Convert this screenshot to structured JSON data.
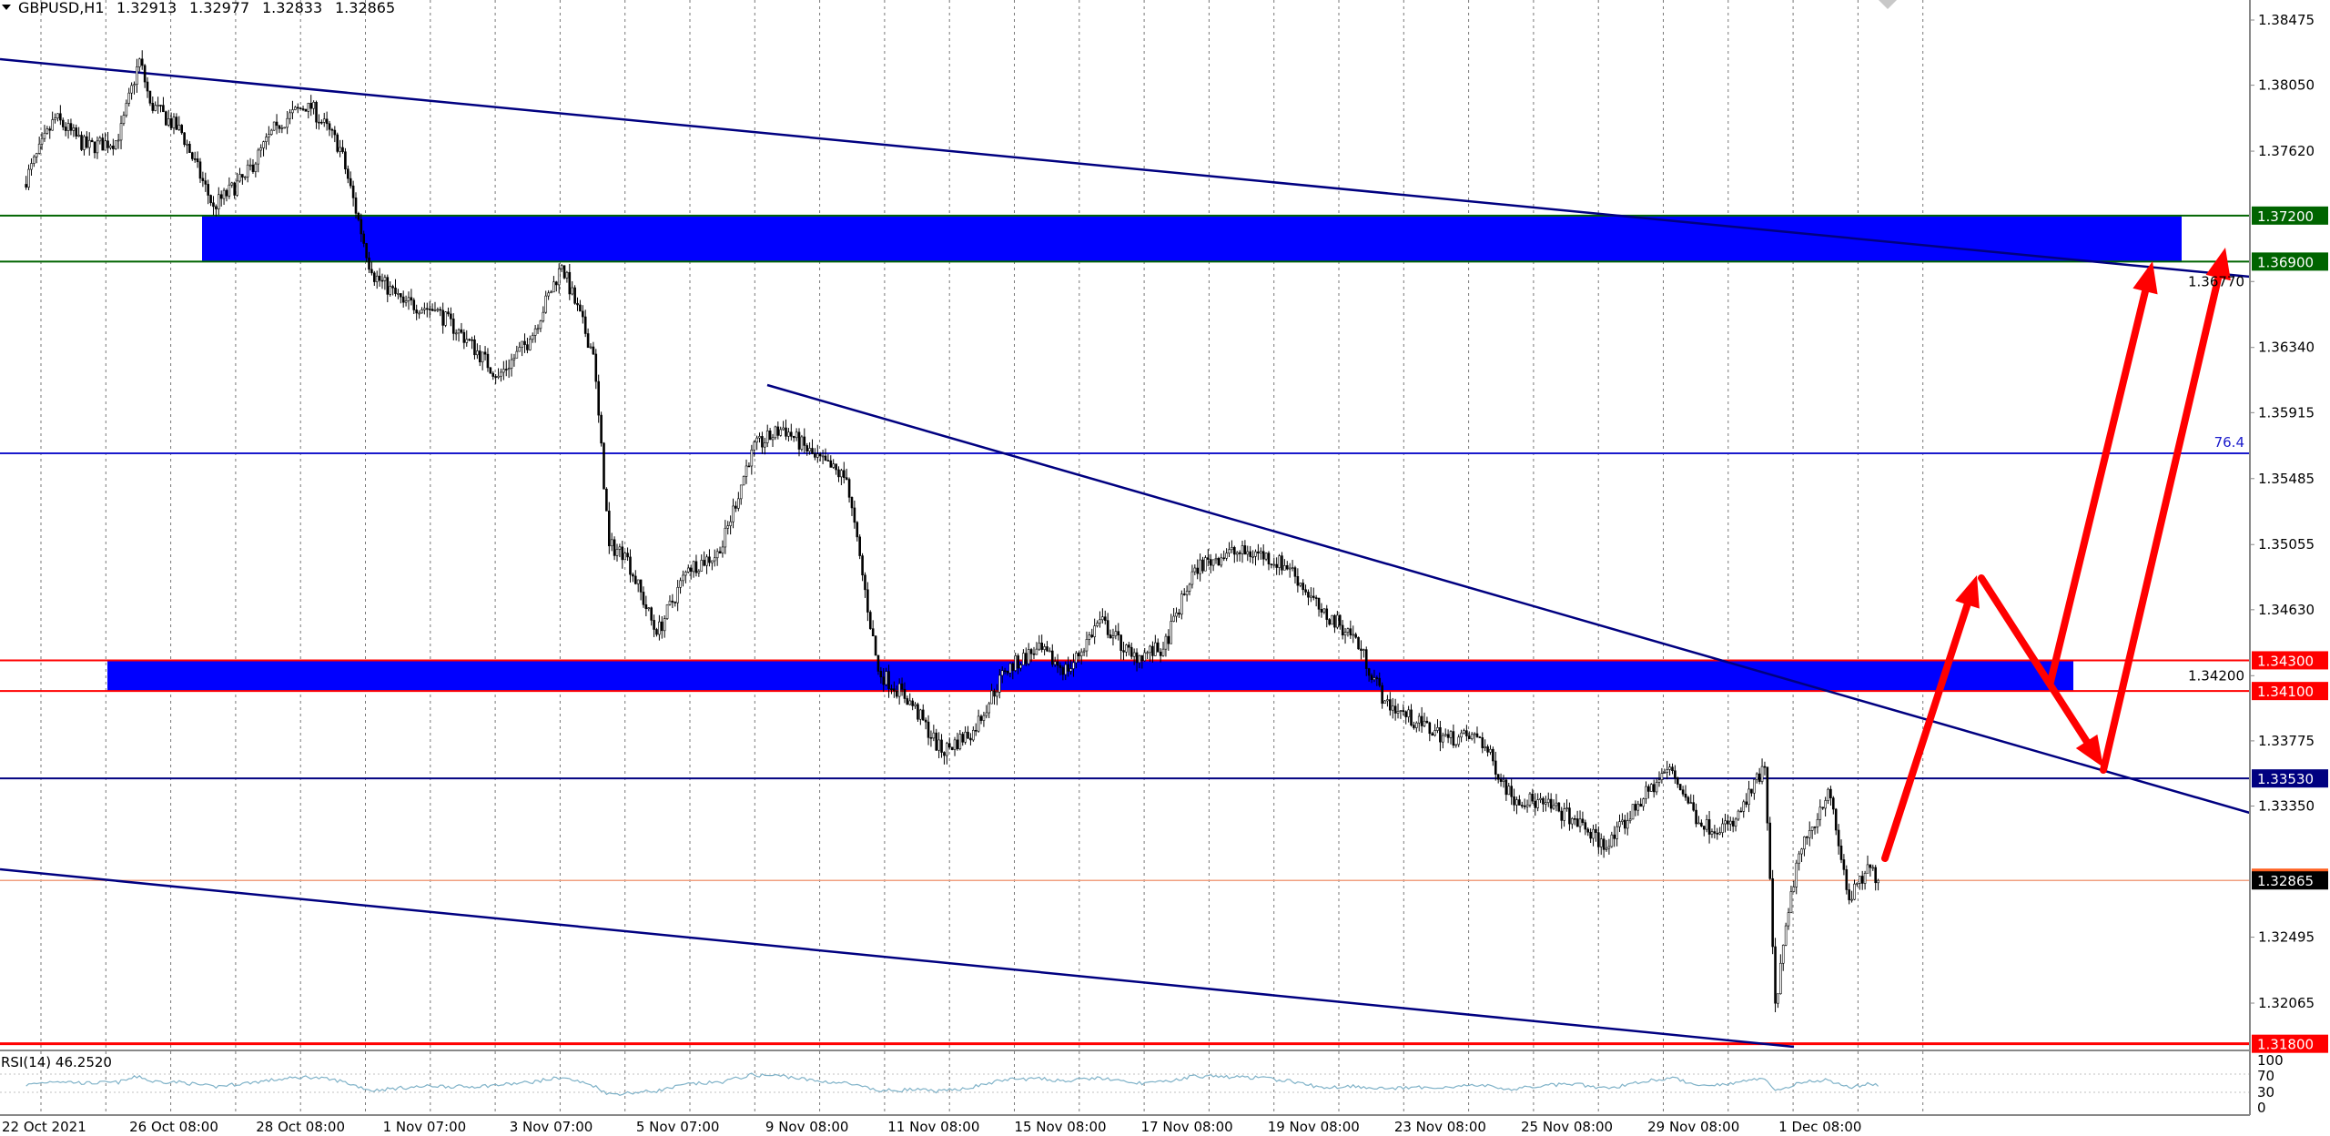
{
  "header": {
    "symbol": "GBPUSD,H1",
    "open": "1.32913",
    "high": "1.32977",
    "low": "1.32833",
    "close": "1.32865"
  },
  "colors": {
    "zone": "#0000ff",
    "trendline": "#000080",
    "support_resistance_red": "#ff0000",
    "green_level": "#006400",
    "arrow": "#ff0000",
    "rsi_line": "#7fb2c8",
    "candles": "#000000"
  },
  "chart_data": {
    "type": "candlestick",
    "title": "GBPUSD,H1",
    "timeframe": "H1",
    "ylim": [
      1.318,
      1.3855
    ],
    "grid": "vertical dashed",
    "price_ticks": [
      "1.38475",
      "1.38050",
      "1.37620",
      "1.36770",
      "1.36340",
      "1.35915",
      "1.35485",
      "1.35055",
      "1.34630",
      "1.34200",
      "1.33775",
      "1.33350",
      "1.32495",
      "1.32065"
    ],
    "time_ticks": [
      {
        "label": "22 Oct 2021",
        "t": "22 Oct 00:00"
      },
      {
        "label": "26 Oct 08:00",
        "t": "26 Oct 08:00"
      },
      {
        "label": "28 Oct 08:00",
        "t": "28 Oct 08:00"
      },
      {
        "label": "1 Nov 07:00",
        "t": "1 Nov 07:00"
      },
      {
        "label": "3 Nov 07:00",
        "t": "3 Nov 07:00"
      },
      {
        "label": "5 Nov 07:00",
        "t": "5 Nov 07:00"
      },
      {
        "label": "9 Nov 08:00",
        "t": "9 Nov 08:00"
      },
      {
        "label": "11 Nov 08:00",
        "t": "11 Nov 08:00"
      },
      {
        "label": "15 Nov 08:00",
        "t": "15 Nov 08:00"
      },
      {
        "label": "17 Nov 08:00",
        "t": "17 Nov 08:00"
      },
      {
        "label": "19 Nov 08:00",
        "t": "19 Nov 08:00"
      },
      {
        "label": "23 Nov 08:00",
        "t": "23 Nov 08:00"
      },
      {
        "label": "25 Nov 08:00",
        "t": "25 Nov 08:00"
      },
      {
        "label": "29 Nov 08:00",
        "t": "29 Nov 08:00"
      },
      {
        "label": "1 Dec 08:00",
        "t": "1 Dec 08:00"
      }
    ],
    "price_path": [
      {
        "t": "22 Oct 00:00",
        "p": 1.37404,
        "rsi": 45
      },
      {
        "t": "22 Oct 12:00",
        "p": 1.37836,
        "rsi": 55
      },
      {
        "t": "25 Oct 00:00",
        "p": 1.37644,
        "rsi": 50
      },
      {
        "t": "25 Oct 12:00",
        "p": 1.37692,
        "rsi": 52
      },
      {
        "t": "25 Oct 20:00",
        "p": 1.38221,
        "rsi": 66
      },
      {
        "t": "26 Oct 00:00",
        "p": 1.37933,
        "rsi": 54
      },
      {
        "t": "26 Oct 12:00",
        "p": 1.3774,
        "rsi": 52
      },
      {
        "t": "27 Oct 00:00",
        "p": 1.37259,
        "rsi": 42
      },
      {
        "t": "27 Oct 12:00",
        "p": 1.37452,
        "rsi": 50
      },
      {
        "t": "28 Oct 00:00",
        "p": 1.37788,
        "rsi": 58
      },
      {
        "t": "28 Oct 12:00",
        "p": 1.37933,
        "rsi": 64
      },
      {
        "t": "29 Oct 00:00",
        "p": 1.37644,
        "rsi": 55
      },
      {
        "t": "29 Oct 12:00",
        "p": 1.36826,
        "rsi": 34
      },
      {
        "t": "1 Nov 00:00",
        "p": 1.36634,
        "rsi": 40
      },
      {
        "t": "1 Nov 12:00",
        "p": 1.36586,
        "rsi": 44
      },
      {
        "t": "2 Nov 00:00",
        "p": 1.36393,
        "rsi": 42
      },
      {
        "t": "2 Nov 12:00",
        "p": 1.36153,
        "rsi": 46
      },
      {
        "t": "3 Nov 00:00",
        "p": 1.36393,
        "rsi": 52
      },
      {
        "t": "3 Nov 12:00",
        "p": 1.36874,
        "rsi": 63
      },
      {
        "t": "4 Nov 00:00",
        "p": 1.36297,
        "rsi": 45
      },
      {
        "t": "4 Nov 06:00",
        "p": 1.35046,
        "rsi": 26
      },
      {
        "t": "4 Nov 12:00",
        "p": 1.34999,
        "rsi": 28
      },
      {
        "t": "5 Nov 00:00",
        "p": 1.34469,
        "rsi": 33
      },
      {
        "t": "5 Nov 12:00",
        "p": 1.34902,
        "rsi": 48
      },
      {
        "t": "8 Nov 00:00",
        "p": 1.34999,
        "rsi": 52
      },
      {
        "t": "8 Nov 12:00",
        "p": 1.35672,
        "rsi": 68
      },
      {
        "t": "9 Nov 00:00",
        "p": 1.35816,
        "rsi": 66
      },
      {
        "t": "9 Nov 12:00",
        "p": 1.35624,
        "rsi": 55
      },
      {
        "t": "10 Nov 00:00",
        "p": 1.3548,
        "rsi": 50
      },
      {
        "t": "10 Nov 12:00",
        "p": 1.34229,
        "rsi": 33
      },
      {
        "t": "11 Nov 00:00",
        "p": 1.34036,
        "rsi": 36
      },
      {
        "t": "11 Nov 12:00",
        "p": 1.337,
        "rsi": 32
      },
      {
        "t": "12 Nov 00:00",
        "p": 1.33844,
        "rsi": 42
      },
      {
        "t": "12 Nov 12:00",
        "p": 1.34229,
        "rsi": 58
      },
      {
        "t": "15 Nov 00:00",
        "p": 1.34373,
        "rsi": 60
      },
      {
        "t": "15 Nov 12:00",
        "p": 1.34229,
        "rsi": 55
      },
      {
        "t": "16 Nov 00:00",
        "p": 1.34565,
        "rsi": 62
      },
      {
        "t": "16 Nov 12:00",
        "p": 1.34325,
        "rsi": 50
      },
      {
        "t": "17 Nov 00:00",
        "p": 1.34373,
        "rsi": 52
      },
      {
        "t": "17 Nov 12:00",
        "p": 1.34902,
        "rsi": 66
      },
      {
        "t": "18 Nov 00:00",
        "p": 1.34999,
        "rsi": 64
      },
      {
        "t": "18 Nov 12:00",
        "p": 1.34999,
        "rsi": 62
      },
      {
        "t": "19 Nov 00:00",
        "p": 1.34902,
        "rsi": 55
      },
      {
        "t": "19 Nov 12:00",
        "p": 1.34614,
        "rsi": 40
      },
      {
        "t": "22 Nov 00:00",
        "p": 1.34469,
        "rsi": 44
      },
      {
        "t": "22 Nov 12:00",
        "p": 1.34036,
        "rsi": 38
      },
      {
        "t": "23 Nov 00:00",
        "p": 1.33892,
        "rsi": 40
      },
      {
        "t": "23 Nov 12:00",
        "p": 1.33796,
        "rsi": 42
      },
      {
        "t": "24 Nov 00:00",
        "p": 1.33796,
        "rsi": 46
      },
      {
        "t": "24 Nov 12:00",
        "p": 1.33411,
        "rsi": 36
      },
      {
        "t": "25 Nov 00:00",
        "p": 1.33363,
        "rsi": 45
      },
      {
        "t": "25 Nov 12:00",
        "p": 1.33267,
        "rsi": 48
      },
      {
        "t": "26 Nov 00:00",
        "p": 1.33074,
        "rsi": 38
      },
      {
        "t": "26 Nov 12:00",
        "p": 1.33363,
        "rsi": 52
      },
      {
        "t": "29 Nov 00:00",
        "p": 1.33604,
        "rsi": 62
      },
      {
        "t": "29 Nov 12:00",
        "p": 1.33219,
        "rsi": 45
      },
      {
        "t": "30 Nov 00:00",
        "p": 1.33219,
        "rsi": 50
      },
      {
        "t": "30 Nov 12:00",
        "p": 1.33604,
        "rsi": 62
      },
      {
        "t": "30 Nov 16:00",
        "p": 1.32064,
        "rsi": 32
      },
      {
        "t": "1 Dec 00:00",
        "p": 1.32978,
        "rsi": 50
      },
      {
        "t": "1 Dec 12:00",
        "p": 1.33459,
        "rsi": 58
      },
      {
        "t": "1 Dec 20:00",
        "p": 1.32738,
        "rsi": 40
      },
      {
        "t": "2 Dec 04:00",
        "p": 1.32949,
        "rsi": 50
      },
      {
        "t": "2 Dec 07:00",
        "p": 1.32865,
        "rsi": 46.252
      }
    ],
    "levels": [
      {
        "price": 1.372,
        "label": "1.37200",
        "color": "#006400",
        "style": "green"
      },
      {
        "price": 1.369,
        "label": "1.36900",
        "color": "#006400",
        "style": "green"
      },
      {
        "price": 1.343,
        "label": "1.34300",
        "color": "#ff0000",
        "style": "red"
      },
      {
        "price": 1.341,
        "label": "1.34100",
        "color": "#ff0000",
        "style": "red"
      },
      {
        "price": 1.3353,
        "label": "1.33530",
        "color": "#000080",
        "style": "navy"
      },
      {
        "price": 1.318,
        "label": "1.31800",
        "color": "#ff0000",
        "style": "red"
      }
    ],
    "zones": [
      {
        "from": 1.369,
        "to": 1.372,
        "color": "#0000ff"
      },
      {
        "from": 1.341,
        "to": 1.343,
        "color": "#0000ff"
      }
    ],
    "fib_level": {
      "label": "76.4",
      "price": 1.3565
    },
    "current_price": {
      "label": "1.32865",
      "price": 1.32865
    },
    "rsi": {
      "label": "RSI(14) 46.2520",
      "levels": [
        "100",
        "70",
        "30",
        "0"
      ]
    }
  }
}
